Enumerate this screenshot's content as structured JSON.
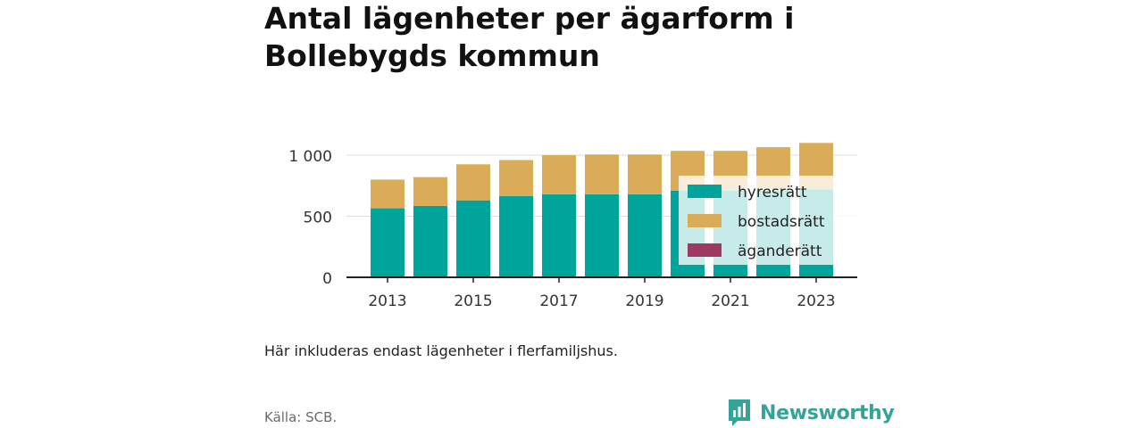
{
  "header": {
    "title": "Antal lägenheter per ägarform i Bollebygds kommun"
  },
  "footer": {
    "note": "Här inkluderas endast lägenheter i flerfamiljshus.",
    "source": "Källa: SCB.",
    "brand": "Newsworthy",
    "brand_color": "#34a39a"
  },
  "chart_data": {
    "type": "bar",
    "stacked": true,
    "title": "Antal lägenheter per ägarform i Bollebygds kommun",
    "xlabel": "",
    "ylabel": "",
    "categories": [
      "2013",
      "2014",
      "2015",
      "2016",
      "2017",
      "2018",
      "2019",
      "2020",
      "2021",
      "2022",
      "2023"
    ],
    "x_tick_labels": [
      "2013",
      "2015",
      "2017",
      "2019",
      "2021",
      "2023"
    ],
    "y_ticks": [
      0,
      500,
      1000
    ],
    "y_tick_labels": [
      "0",
      "500",
      "1 000"
    ],
    "ylim": [
      0,
      1100
    ],
    "grid": "horizontal",
    "legend_position": "right-inside",
    "series": [
      {
        "name": "hyresrätt",
        "color": "#00a49a",
        "values": [
          565,
          585,
          630,
          665,
          680,
          680,
          680,
          710,
          710,
          710,
          720
        ]
      },
      {
        "name": "bostadsrätt",
        "color": "#dbac58",
        "values": [
          235,
          235,
          295,
          295,
          320,
          325,
          325,
          325,
          325,
          355,
          380
        ]
      },
      {
        "name": "äganderätt",
        "color": "#9e3a62",
        "values": [
          0,
          0,
          0,
          0,
          0,
          0,
          0,
          0,
          0,
          0,
          0
        ]
      }
    ]
  }
}
